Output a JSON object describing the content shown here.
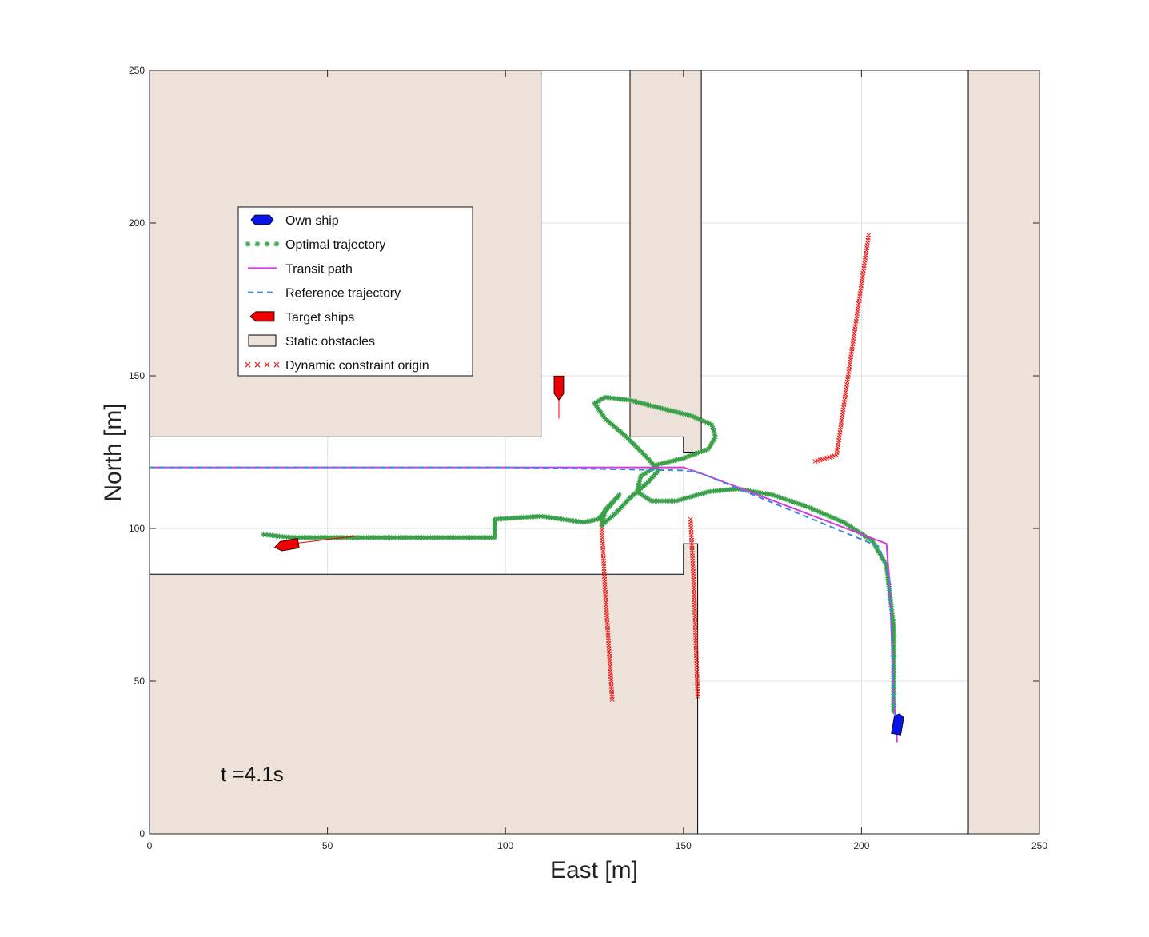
{
  "chart_data": {
    "type": "scatter",
    "xlabel": "East [m]",
    "ylabel": "North [m]",
    "xlim": [
      0,
      250
    ],
    "ylim": [
      0,
      250
    ],
    "xticks": [
      0,
      50,
      100,
      150,
      200,
      250
    ],
    "yticks": [
      0,
      50,
      100,
      150,
      200,
      250
    ],
    "grid": true,
    "legend_position": "upper-left",
    "time_label": "t =4.1s",
    "colors": {
      "own_ship": "#0a14e6",
      "optimal": "#3aa04a",
      "transit": "#d23ce0",
      "reference": "#3a88e0",
      "target": "#ee0000",
      "dynamic": "#e82020",
      "obstacle_fill": "#ede2da",
      "obstacle_edge": "#000000"
    },
    "legend": [
      {
        "label": "Own ship",
        "marker": "own-ship"
      },
      {
        "label": "Optimal trajectory",
        "marker": "stars"
      },
      {
        "label": "Transit path",
        "marker": "solid-line"
      },
      {
        "label": "Reference trajectory",
        "marker": "dashed-line"
      },
      {
        "label": "Target ships",
        "marker": "target-ship"
      },
      {
        "label": "Static obstacles",
        "marker": "box"
      },
      {
        "label": "Dynamic constraint origin",
        "marker": "crosses"
      }
    ],
    "static_obstacles": [
      [
        [
          0,
          130
        ],
        [
          110,
          130
        ],
        [
          110,
          250
        ],
        [
          0,
          250
        ]
      ],
      [
        [
          135,
          130
        ],
        [
          150,
          130
        ],
        [
          150,
          125
        ],
        [
          155,
          125
        ],
        [
          155,
          250
        ],
        [
          135,
          250
        ]
      ],
      [
        [
          230,
          0
        ],
        [
          250,
          0
        ],
        [
          250,
          250
        ],
        [
          230,
          250
        ]
      ],
      [
        [
          0,
          0
        ],
        [
          154,
          0
        ],
        [
          154,
          95
        ],
        [
          150,
          95
        ],
        [
          150,
          85
        ],
        [
          0,
          85
        ]
      ]
    ],
    "transit_path": [
      [
        0,
        120
      ],
      [
        150,
        120
      ],
      [
        155,
        118
      ],
      [
        207,
        95
      ],
      [
        208,
        80
      ],
      [
        209,
        45
      ],
      [
        210,
        30
      ]
    ],
    "reference_trajectory": [
      [
        0,
        120
      ],
      [
        100,
        120
      ],
      [
        150,
        119
      ],
      [
        155,
        118
      ],
      [
        205,
        94
      ],
      [
        208,
        82
      ],
      [
        209,
        45
      ],
      [
        210,
        34
      ]
    ],
    "optimal_trajectory": [
      [
        32,
        98
      ],
      [
        40,
        97
      ],
      [
        60,
        97
      ],
      [
        80,
        97
      ],
      [
        97,
        97
      ],
      [
        97,
        103
      ],
      [
        110,
        104
      ],
      [
        122,
        102
      ],
      [
        126,
        103
      ],
      [
        129,
        107
      ],
      [
        132,
        111
      ],
      [
        128,
        106
      ],
      [
        127,
        101
      ],
      [
        131,
        105
      ],
      [
        135,
        110
      ],
      [
        140,
        115
      ],
      [
        143,
        119
      ],
      [
        140,
        123
      ],
      [
        134,
        130
      ],
      [
        128,
        136
      ],
      [
        125,
        141
      ],
      [
        128,
        143
      ],
      [
        135,
        142
      ],
      [
        145,
        139
      ],
      [
        152,
        137
      ],
      [
        158,
        134
      ],
      [
        159,
        130
      ],
      [
        157,
        126
      ],
      [
        150,
        123
      ],
      [
        143,
        121
      ],
      [
        138,
        117
      ],
      [
        137,
        112
      ],
      [
        141,
        109
      ],
      [
        148,
        109
      ],
      [
        157,
        112
      ],
      [
        165,
        113
      ],
      [
        175,
        111
      ],
      [
        185,
        107
      ],
      [
        195,
        102
      ],
      [
        203,
        96
      ],
      [
        207,
        88
      ],
      [
        208,
        78
      ],
      [
        209,
        68
      ],
      [
        209,
        58
      ],
      [
        209,
        48
      ],
      [
        209,
        40
      ]
    ],
    "dynamic_constraint_origins": [
      {
        "points": [
          [
            187,
            122
          ],
          [
            193,
            124
          ],
          [
            202,
            196
          ]
        ]
      },
      {
        "points": [
          [
            127,
            102
          ],
          [
            128,
            80
          ],
          [
            130,
            44
          ]
        ]
      },
      {
        "points": [
          [
            152,
            103
          ],
          [
            153,
            80
          ],
          [
            154,
            45
          ]
        ]
      }
    ],
    "own_ship": {
      "x": 210.2,
      "y": 36,
      "heading_deg": 10
    },
    "target_ships": [
      {
        "x": 38.5,
        "y": 94.5,
        "heading_deg": 260,
        "trail": [
          [
            40,
            95
          ],
          [
            58,
            97.5
          ]
        ]
      },
      {
        "x": 115,
        "y": 146,
        "heading_deg": 180,
        "trail": [
          [
            115,
            144
          ],
          [
            115,
            136
          ]
        ]
      }
    ]
  }
}
